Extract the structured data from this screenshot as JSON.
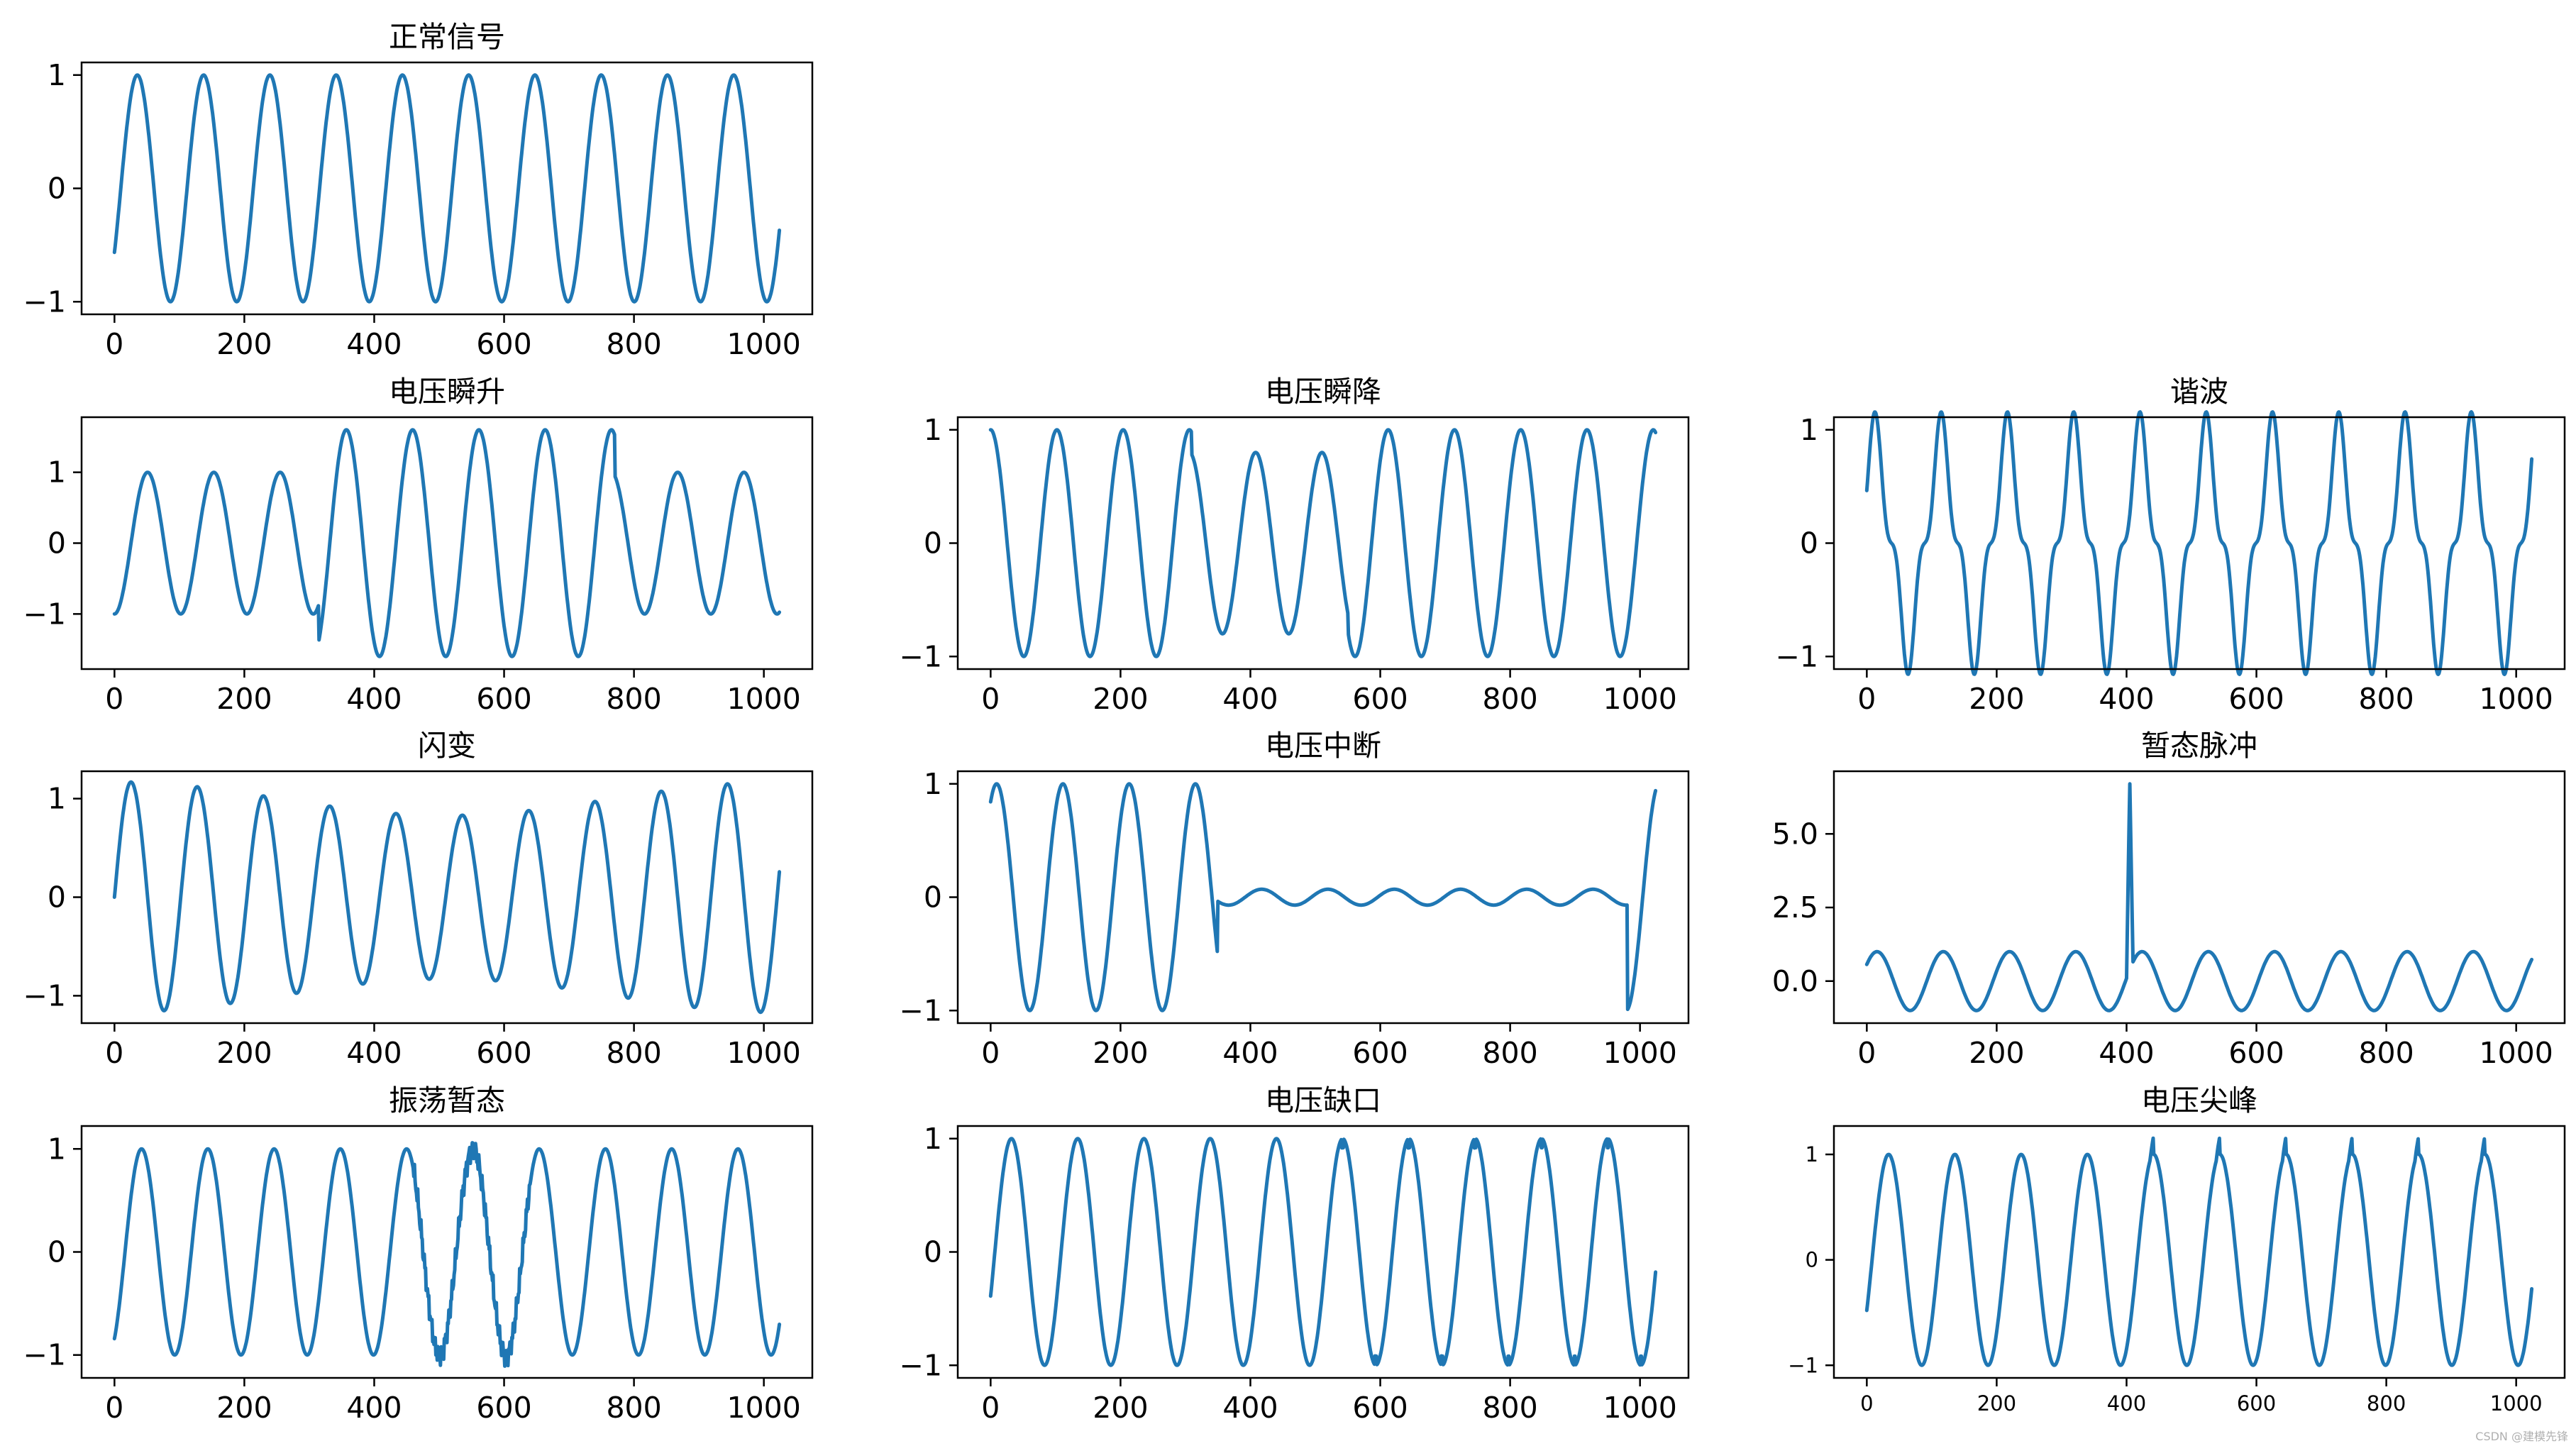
{
  "watermark": "CSDN @建模先锋",
  "chart_data": [
    {
      "id": "normal",
      "title": "正常信号",
      "type": "line",
      "xlim": [
        0,
        1024
      ],
      "ylim": [
        -1,
        1
      ],
      "xticks": [
        "0",
        "200",
        "400",
        "600",
        "800",
        "1000"
      ],
      "yticks": [
        {
          "v": -1,
          "label": "−1"
        },
        {
          "v": 0,
          "label": "0"
        },
        {
          "v": 1,
          "label": "1"
        }
      ],
      "signal": {
        "freq": 0.0098,
        "phase": -0.6,
        "amp": 1
      }
    },
    {
      "id": "swell",
      "title": "电压瞬升",
      "type": "line",
      "xlim": [
        0,
        1024
      ],
      "ylim": [
        -1.6,
        1.6
      ],
      "xticks": [
        "0",
        "200",
        "400",
        "600",
        "800",
        "1000"
      ],
      "yticks": [
        {
          "v": -1,
          "label": "−1"
        },
        {
          "v": 0,
          "label": "0"
        },
        {
          "v": 1,
          "label": "1"
        }
      ],
      "signal": {
        "freq": 0.0098,
        "phase": -1.57,
        "amp": 1,
        "event": {
          "kind": "swell",
          "start": 315,
          "end": 770,
          "amp": 1.6
        }
      }
    },
    {
      "id": "sag",
      "title": "电压瞬降",
      "type": "line",
      "xlim": [
        0,
        1024
      ],
      "ylim": [
        -1,
        1
      ],
      "xticks": [
        "0",
        "200",
        "400",
        "600",
        "800",
        "1000"
      ],
      "yticks": [
        {
          "v": -1,
          "label": "−1"
        },
        {
          "v": 0,
          "label": "0"
        },
        {
          "v": 1,
          "label": "1"
        }
      ],
      "signal": {
        "freq": 0.0098,
        "phase": 1.57,
        "amp": 1,
        "event": {
          "kind": "sag",
          "start": 310,
          "end": 550,
          "amp": 0.8
        }
      }
    },
    {
      "id": "harmonic",
      "title": "谐波",
      "type": "line",
      "xlim": [
        0,
        1024
      ],
      "ylim": [
        -1,
        1
      ],
      "xticks": [
        "0",
        "200",
        "400",
        "600",
        "800",
        "1000"
      ],
      "yticks": [
        {
          "v": -1,
          "label": "−1"
        },
        {
          "v": 0,
          "label": "0"
        },
        {
          "v": 1,
          "label": "1"
        }
      ],
      "signal": {
        "freq": 0.0098,
        "phase": 0.8,
        "amp": 0.85,
        "event": {
          "kind": "harmonic",
          "amp3": -0.25
        }
      }
    },
    {
      "id": "flicker",
      "title": "闪变",
      "type": "line",
      "xlim": [
        0,
        1024
      ],
      "ylim": [
        -1.15,
        1.15
      ],
      "xticks": [
        "0",
        "200",
        "400",
        "600",
        "800",
        "1000"
      ],
      "yticks": [
        {
          "v": -1,
          "label": "−1"
        },
        {
          "v": 0,
          "label": "0"
        },
        {
          "v": 1,
          "label": "1"
        }
      ],
      "signal": {
        "freq": 0.0098,
        "phase": 0,
        "amp": 1,
        "event": {
          "kind": "flicker",
          "depth": 0.17,
          "period": 1024
        }
      }
    },
    {
      "id": "interruption",
      "title": "电压中断",
      "type": "line",
      "xlim": [
        0,
        1024
      ],
      "ylim": [
        -1,
        1
      ],
      "xticks": [
        "0",
        "200",
        "400",
        "600",
        "800",
        "1000"
      ],
      "yticks": [
        {
          "v": -1,
          "label": "−1"
        },
        {
          "v": 0,
          "label": "0"
        },
        {
          "v": 1,
          "label": "1"
        }
      ],
      "signal": {
        "freq": 0.0098,
        "phase": 1.0,
        "amp": 1,
        "event": {
          "kind": "interruption",
          "start": 350,
          "end": 980,
          "amp": 0.07
        }
      }
    },
    {
      "id": "transient",
      "title": "暂态脉冲",
      "type": "line",
      "xlim": [
        0,
        1024
      ],
      "ylim": [
        -1,
        6.7
      ],
      "xticks": [
        "0",
        "200",
        "400",
        "600",
        "800",
        "1000"
      ],
      "yticks": [
        {
          "v": 0,
          "label": "0.0"
        },
        {
          "v": 2.5,
          "label": "2.5"
        },
        {
          "v": 5,
          "label": "5.0"
        }
      ],
      "signal": {
        "freq": 0.0098,
        "phase": 0.6,
        "amp": 1,
        "event": {
          "kind": "impulse",
          "start": 400,
          "end": 410,
          "peak": 6.7
        }
      }
    },
    {
      "id": "oscillation",
      "title": "振荡暂态",
      "type": "line",
      "xlim": [
        0,
        1024
      ],
      "ylim": [
        -1.1,
        1.1
      ],
      "xticks": [
        "0",
        "200",
        "400",
        "600",
        "800",
        "1000"
      ],
      "yticks": [
        {
          "v": -1,
          "label": "−1"
        },
        {
          "v": 0,
          "label": "0"
        },
        {
          "v": 1,
          "label": "1"
        }
      ],
      "signal": {
        "freq": 0.0098,
        "phase": -1.0,
        "amp": 1,
        "event": {
          "kind": "oscillation",
          "start": 460,
          "end": 640,
          "amp": 0.12
        }
      }
    },
    {
      "id": "notch",
      "title": "电压缺口",
      "type": "line",
      "xlim": [
        0,
        1024
      ],
      "ylim": [
        -1,
        1
      ],
      "xticks": [
        "0",
        "200",
        "400",
        "600",
        "800",
        "1000"
      ],
      "yticks": [
        {
          "v": -1,
          "label": "−1"
        },
        {
          "v": 0,
          "label": "0"
        },
        {
          "v": 1,
          "label": "1"
        }
      ],
      "signal": {
        "freq": 0.0098,
        "phase": -0.4,
        "amp": 1,
        "event": {
          "kind": "notch",
          "start": 500,
          "end": 1024,
          "depth": 0.08
        }
      }
    },
    {
      "id": "spike",
      "title": "电压尖峰",
      "type": "line",
      "xlim": [
        0,
        1024
      ],
      "ylim": [
        -1,
        1.15
      ],
      "xticks": [
        "0",
        "200",
        "400",
        "600",
        "800",
        "1000"
      ],
      "yticks": [
        {
          "v": -1,
          "label": "−1"
        },
        {
          "v": 0,
          "label": "0"
        },
        {
          "v": 1,
          "label": "1"
        }
      ],
      "smallTicks": true,
      "signal": {
        "freq": 0.0098,
        "phase": -0.5,
        "amp": 1,
        "event": {
          "kind": "spike",
          "start": 430,
          "end": 1024,
          "amp": 0.18
        }
      }
    }
  ]
}
